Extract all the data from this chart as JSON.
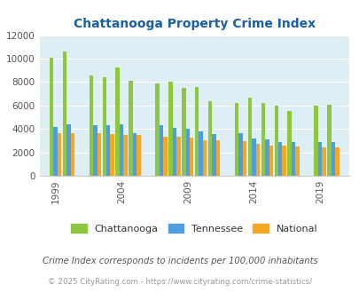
{
  "title": "Chattanooga Property Crime Index",
  "years": [
    1999,
    2000,
    2002,
    2003,
    2004,
    2005,
    2007,
    2008,
    2009,
    2010,
    2011,
    2013,
    2014,
    2015,
    2016,
    2017,
    2019,
    2020
  ],
  "chattanooga": [
    10050,
    10600,
    8550,
    8400,
    9250,
    8100,
    7900,
    8050,
    7500,
    7550,
    6350,
    6250,
    6650,
    6200,
    6000,
    5550,
    6000,
    6050
  ],
  "tennessee": [
    4150,
    4400,
    4350,
    4350,
    4400,
    3600,
    4350,
    4100,
    4050,
    3820,
    3550,
    3620,
    3150,
    3100,
    2900,
    2850,
    2850,
    2900
  ],
  "national": [
    3600,
    3600,
    3600,
    3550,
    3450,
    3450,
    3350,
    3300,
    3250,
    3000,
    3000,
    2950,
    2700,
    2600,
    2550,
    2500,
    2450,
    2400
  ],
  "color_chattanooga": "#8dc63f",
  "color_tennessee": "#4d9de0",
  "color_national": "#f5a623",
  "background_color": "#ddeef4",
  "ylim": [
    0,
    12000
  ],
  "yticks": [
    0,
    2000,
    4000,
    6000,
    8000,
    10000,
    12000
  ],
  "xtick_labels": [
    "1999",
    "2004",
    "2009",
    "2014",
    "2019"
  ],
  "subtitle": "Crime Index corresponds to incidents per 100,000 inhabitants",
  "footer": "© 2025 CityRating.com - https://www.cityrating.com/crime-statistics/",
  "legend_labels": [
    "Chattanooga",
    "Tennessee",
    "National"
  ],
  "title_color": "#1a5fa8",
  "subtitle_color": "#555555",
  "footer_color": "#999999"
}
